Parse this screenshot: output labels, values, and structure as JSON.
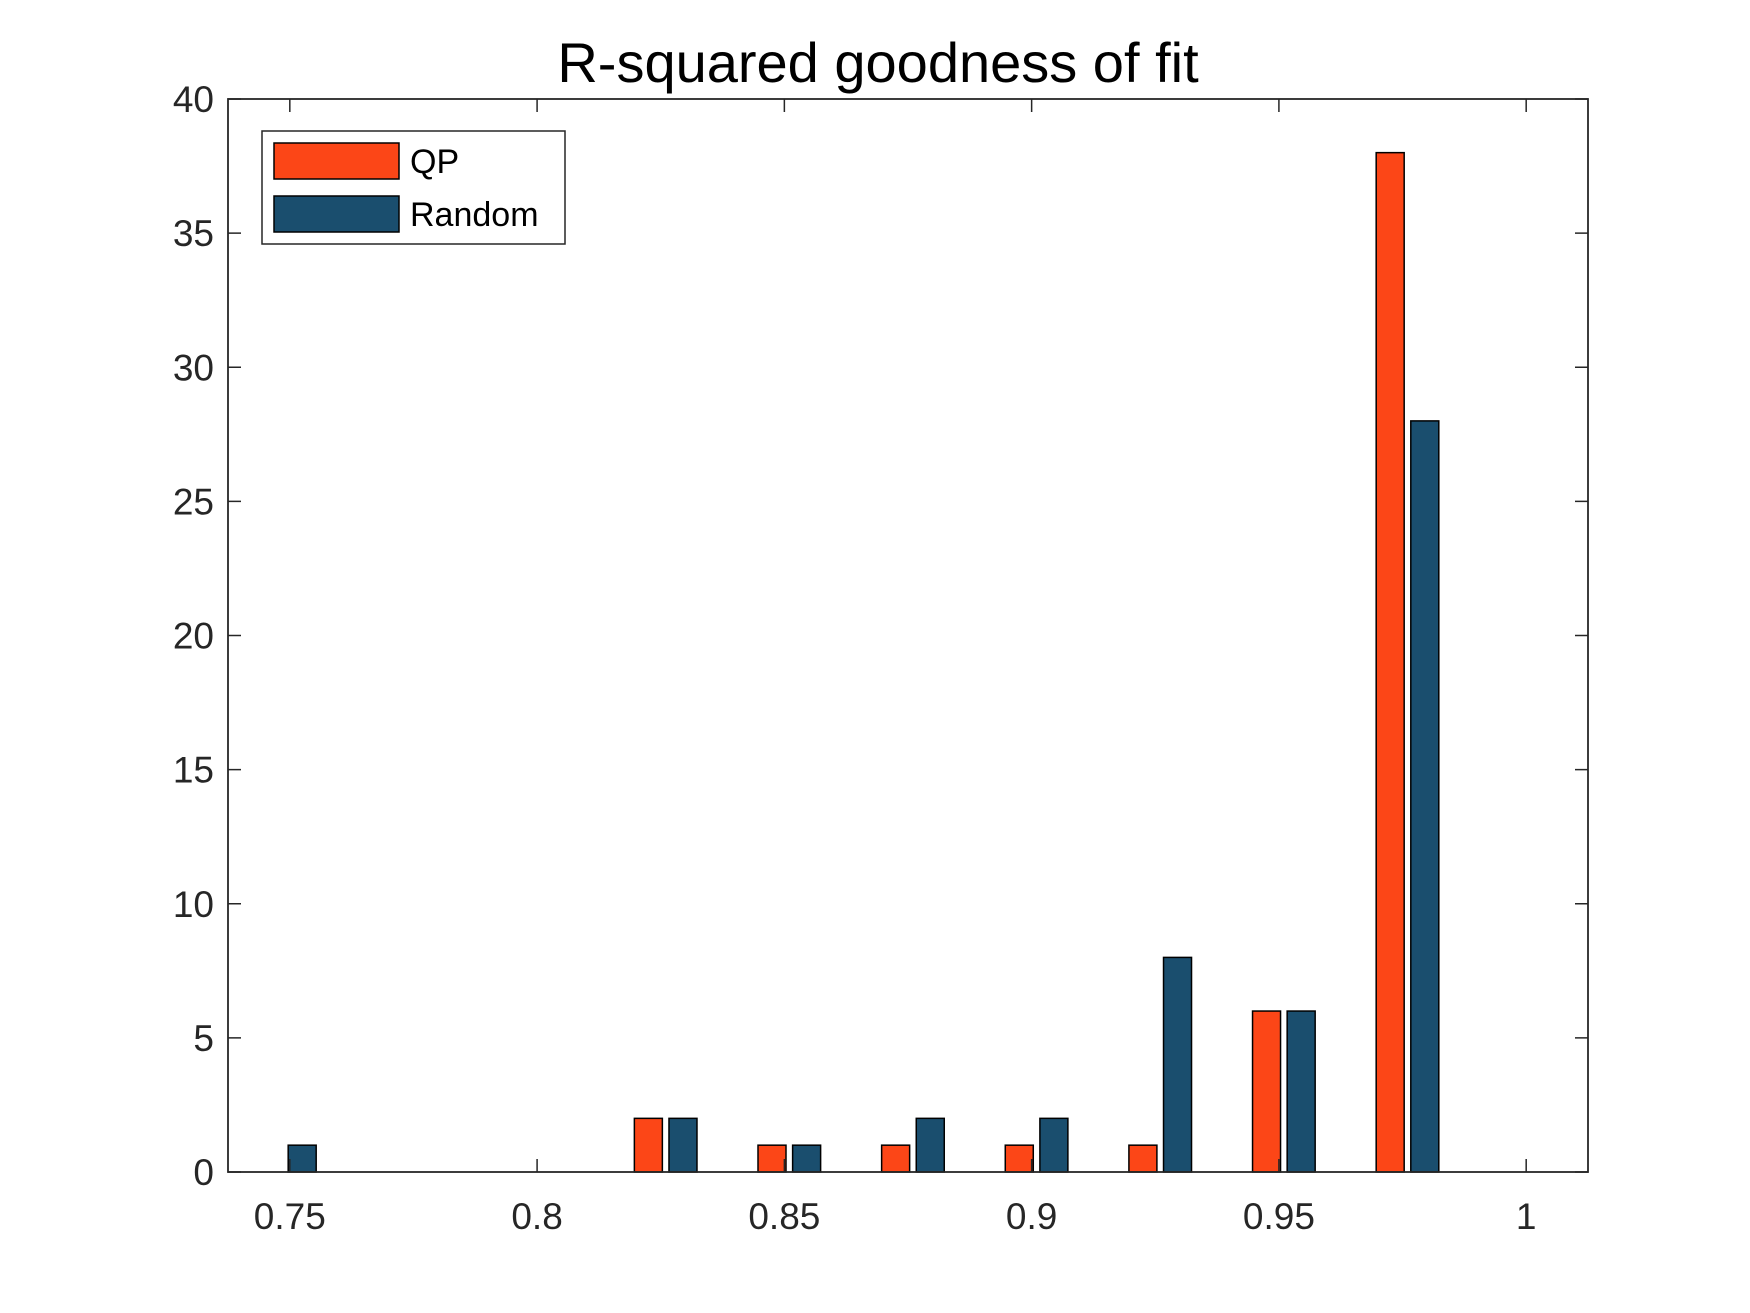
{
  "chart_data": {
    "type": "bar",
    "title": "R-squared goodness of fit",
    "xlabel": "",
    "ylabel": "",
    "xlim": [
      0.7375,
      1.0125
    ],
    "ylim": [
      0,
      40
    ],
    "x_ticks": [
      0.75,
      0.8,
      0.85,
      0.9,
      0.95,
      1
    ],
    "x_tick_labels": [
      "0.75",
      "0.8",
      "0.85",
      "0.9",
      "0.95",
      "1"
    ],
    "y_ticks": [
      0,
      5,
      10,
      15,
      20,
      25,
      30,
      35,
      40
    ],
    "y_tick_labels": [
      "0",
      "5",
      "10",
      "15",
      "20",
      "25",
      "30",
      "35",
      "40"
    ],
    "grid": false,
    "legend_position": "top-left",
    "series": [
      {
        "name": "QP",
        "color": "#FC4617",
        "x": [
          0.8225,
          0.8475,
          0.8725,
          0.8975,
          0.9225,
          0.9475,
          0.9725
        ],
        "values": [
          2,
          1,
          1,
          1,
          1,
          6,
          38
        ]
      },
      {
        "name": "Random",
        "color": "#1A4E6E",
        "x": [
          0.7525,
          0.8295,
          0.8545,
          0.8795,
          0.9045,
          0.9295,
          0.9545,
          0.9795
        ],
        "values": [
          1,
          2,
          1,
          2,
          2,
          8,
          6,
          28
        ]
      }
    ]
  }
}
